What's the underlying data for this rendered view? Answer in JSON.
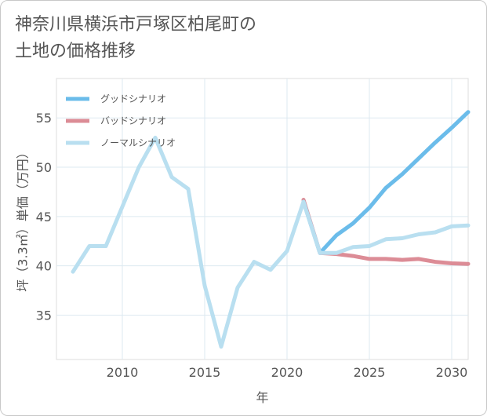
{
  "chart_data": {
    "type": "line",
    "title": [
      "神奈川県横浜市戸塚区柏尾町の",
      "土地の価格推移"
    ],
    "xlabel": "年",
    "ylabel": "坪（3.3㎡）単価（万円）",
    "xlim": [
      2006,
      2031
    ],
    "ylim": [
      30.5,
      59
    ],
    "x_ticks": [
      2010,
      2015,
      2020,
      2025,
      2030
    ],
    "y_ticks": [
      35,
      40,
      45,
      50,
      55
    ],
    "grid": true,
    "legend_position": "top-left",
    "series": [
      {
        "name": "グッドシナリオ",
        "color": "#6bbcea",
        "width": 5,
        "x": [
          2021,
          2022,
          2023,
          2024,
          2025,
          2026,
          2027,
          2028,
          2029,
          2030,
          2031
        ],
        "y": [
          46.5,
          41.3,
          43.1,
          44.3,
          45.9,
          47.9,
          49.3,
          50.9,
          52.5,
          54.0,
          55.6
        ]
      },
      {
        "name": "バッドシナリオ",
        "color": "#dc8c96",
        "width": 5,
        "x": [
          2021,
          2022,
          2023,
          2024,
          2025,
          2026,
          2027,
          2028,
          2029,
          2030,
          2031
        ],
        "y": [
          46.7,
          41.3,
          41.2,
          41.0,
          40.7,
          40.7,
          40.6,
          40.7,
          40.4,
          40.25,
          40.2
        ]
      },
      {
        "name": "ノーマルシナリオ",
        "color": "#b9dff0",
        "width": 5,
        "x": [
          2007,
          2008,
          2009,
          2010,
          2011,
          2012,
          2013,
          2014,
          2015,
          2016,
          2017,
          2018,
          2019,
          2020,
          2021,
          2022,
          2023,
          2024,
          2025,
          2026,
          2027,
          2028,
          2029,
          2030,
          2031
        ],
        "y": [
          39.4,
          42.0,
          42.0,
          46.0,
          50.0,
          53.0,
          49.0,
          47.8,
          38.0,
          31.8,
          37.8,
          40.4,
          39.6,
          41.5,
          46.5,
          41.3,
          41.3,
          41.9,
          42.0,
          42.7,
          42.8,
          43.2,
          43.4,
          44.0,
          44.1
        ]
      }
    ]
  }
}
